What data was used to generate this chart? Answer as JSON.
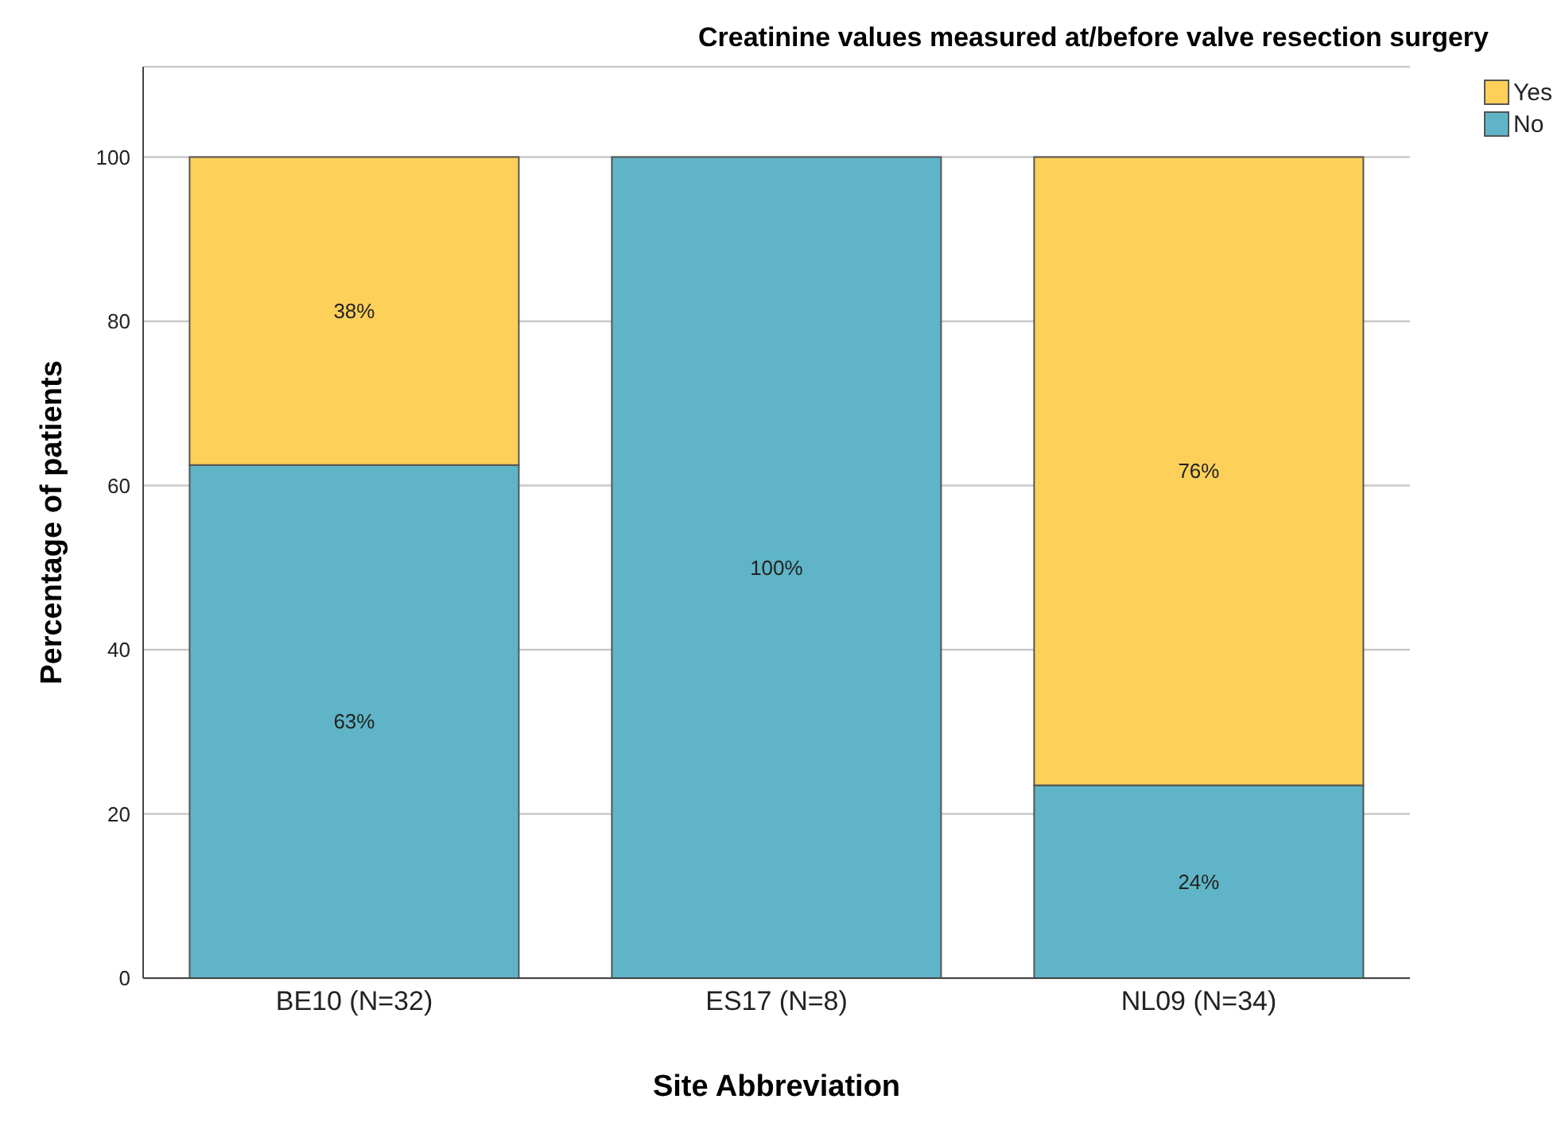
{
  "chart_data": {
    "type": "bar",
    "title": "Creatinine values measured at/before valve resection surgery",
    "xlabel": "Site Abbreviation",
    "ylabel": "Percentage of patients",
    "categories": [
      "BE10 (N=32)",
      "ES17 (N=8)",
      "NL09 (N=34)"
    ],
    "stacked": true,
    "series": [
      {
        "name": "No",
        "color": "#5fb5c7",
        "values": [
          62.5,
          100,
          23.5
        ],
        "value_labels": [
          "63%",
          "100%",
          "24%"
        ]
      },
      {
        "name": "Yes",
        "color": "#fdd05a",
        "values": [
          37.5,
          null,
          76.5
        ],
        "value_labels": [
          "38%",
          null,
          "76%"
        ]
      }
    ],
    "ylim": [
      0,
      111
    ],
    "yticks": [
      0,
      20,
      40,
      60,
      80,
      100
    ],
    "grid": "y",
    "legend": "top right"
  }
}
